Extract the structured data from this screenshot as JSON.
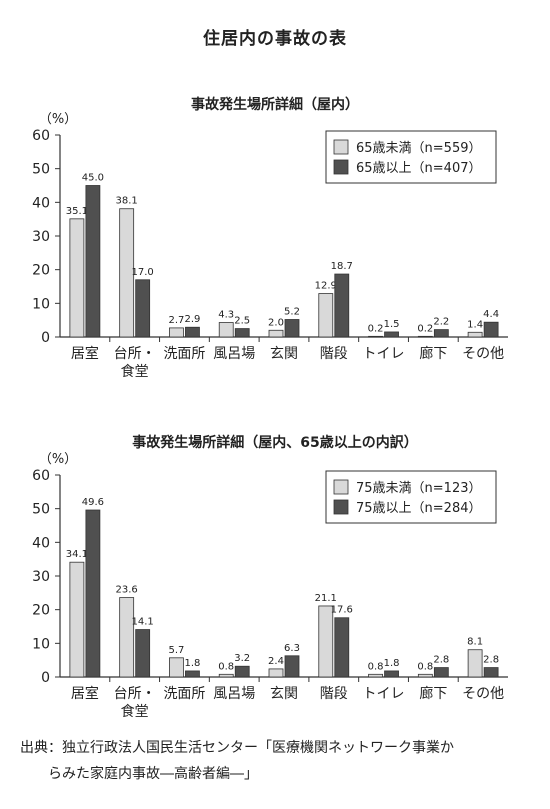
{
  "page_title": "住居内の事故の表",
  "colors": {
    "light": "#d9d9d9",
    "dark": "#505050",
    "axis": "#333333"
  },
  "chart_data": [
    {
      "type": "bar",
      "title": "事故発生場所詳細（屋内）",
      "ylabel": "（%）",
      "ylim": [
        0,
        60
      ],
      "yticks": [
        0,
        10,
        20,
        30,
        40,
        50,
        60
      ],
      "grid": false,
      "legend_position": "top-right",
      "categories": [
        "居室",
        "台所・\n食堂",
        "洗面所",
        "風呂場",
        "玄関",
        "階段",
        "トイレ",
        "廊下",
        "その他"
      ],
      "series": [
        {
          "name": "65歳未満（n=559）",
          "color": "light",
          "values": [
            35.1,
            38.1,
            2.7,
            4.3,
            2.0,
            12.9,
            0.2,
            0.2,
            1.4
          ]
        },
        {
          "name": "65歳以上（n=407）",
          "color": "dark",
          "values": [
            45.0,
            17.0,
            2.9,
            2.5,
            5.2,
            18.7,
            1.5,
            2.2,
            4.4
          ]
        }
      ]
    },
    {
      "type": "bar",
      "title": "事故発生場所詳細（屋内、65歳以上の内訳）",
      "ylabel": "（%）",
      "ylim": [
        0,
        60
      ],
      "yticks": [
        0,
        10,
        20,
        30,
        40,
        50,
        60
      ],
      "grid": false,
      "legend_position": "top-right",
      "categories": [
        "居室",
        "台所・\n食堂",
        "洗面所",
        "風呂場",
        "玄関",
        "階段",
        "トイレ",
        "廊下",
        "その他"
      ],
      "series": [
        {
          "name": "75歳未満（n=123）",
          "color": "light",
          "values": [
            34.1,
            23.6,
            5.7,
            0.8,
            2.4,
            21.1,
            0.8,
            0.8,
            8.1
          ]
        },
        {
          "name": "75歳以上（n=284）",
          "color": "dark",
          "values": [
            49.6,
            14.1,
            1.8,
            3.2,
            6.3,
            17.6,
            1.8,
            2.8,
            2.8
          ]
        }
      ]
    }
  ],
  "source": {
    "line1": "出典：独立行政法人国民生活センター「医療機関ネットワーク事業か",
    "line2": "らみた家庭内事故―高齢者編―」"
  }
}
